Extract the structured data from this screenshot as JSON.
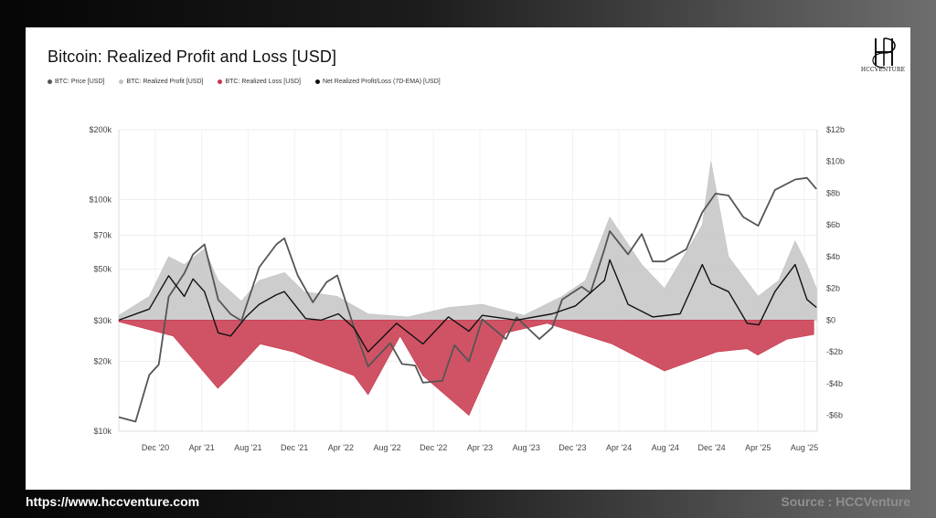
{
  "chart_data": {
    "type": "line",
    "title": "Bitcoin: Realized Profit and Loss [USD]",
    "legend_placement": "top-left",
    "grid": true,
    "x_ticks": [
      "Dec '20",
      "Apr '21",
      "Aug '21",
      "Dec '21",
      "Apr '22",
      "Aug '22",
      "Dec '22",
      "Apr '23",
      "Aug '23",
      "Dec '23",
      "Apr '24",
      "Aug '24",
      "Dec '24",
      "Apr '25",
      "Aug '25"
    ],
    "x_range": [
      "2020-09-01",
      "2025-09-10"
    ],
    "y_left": {
      "scale": "log",
      "range": [
        10000,
        200000
      ],
      "ticks": [
        10000,
        20000,
        30000,
        50000,
        70000,
        100000,
        200000
      ],
      "tick_labels": [
        "$10k",
        "$20k",
        "$30k",
        "$50k",
        "$70k",
        "$100k",
        "$200k"
      ]
    },
    "y_right": {
      "scale": "linear",
      "range": [
        -7000000000,
        12000000000
      ],
      "ticks": [
        -6000000000,
        -4000000000,
        -2000000000,
        0,
        2000000000,
        4000000000,
        6000000000,
        8000000000,
        10000000000,
        12000000000
      ],
      "tick_labels": [
        "-$6b",
        "-$4b",
        "-$2b",
        "$0",
        "$2b",
        "$4b",
        "$6b",
        "$8b",
        "$10b",
        "$12b"
      ]
    },
    "series": [
      {
        "name": "BTC: Price [USD]",
        "color": "#555555",
        "axis": "left",
        "x": [
          "2020-09-01",
          "2020-10-15",
          "2020-11-20",
          "2020-12-15",
          "2021-01-10",
          "2021-02-20",
          "2021-03-15",
          "2021-04-14",
          "2021-05-20",
          "2021-06-22",
          "2021-07-20",
          "2021-09-05",
          "2021-10-20",
          "2021-11-10",
          "2021-12-15",
          "2022-01-24",
          "2022-03-01",
          "2022-03-29",
          "2022-05-12",
          "2022-06-18",
          "2022-08-15",
          "2022-09-15",
          "2022-10-20",
          "2022-11-09",
          "2022-12-30",
          "2023-01-31",
          "2023-03-10",
          "2023-04-14",
          "2023-06-15",
          "2023-07-13",
          "2023-09-11",
          "2023-10-15",
          "2023-11-10",
          "2023-12-31",
          "2024-01-23",
          "2024-02-29",
          "2024-03-14",
          "2024-05-01",
          "2024-06-06",
          "2024-07-05",
          "2024-08-05",
          "2024-10-01",
          "2024-11-12",
          "2024-12-17",
          "2025-01-20",
          "2025-02-28",
          "2025-04-08",
          "2025-05-22",
          "2025-07-14",
          "2025-08-14",
          "2025-09-08"
        ],
        "values": [
          11500,
          11000,
          17500,
          19400,
          38000,
          48000,
          58000,
          64000,
          37000,
          32000,
          30000,
          51000,
          64000,
          68000,
          47000,
          36000,
          44000,
          47000,
          28000,
          19000,
          24000,
          19500,
          19200,
          16200,
          16500,
          23500,
          20000,
          30400,
          25000,
          31000,
          25000,
          28000,
          37000,
          42000,
          39500,
          61000,
          73000,
          58000,
          71000,
          54000,
          54000,
          61000,
          88000,
          106000,
          104000,
          84000,
          77000,
          110000,
          122000,
          124000,
          111000
        ]
      },
      {
        "name": "BTC: Realized Profit [USD]",
        "color": "#c4c4c4",
        "axis": "right",
        "x": [
          "2020-09-01",
          "2020-11-20",
          "2021-01-10",
          "2021-02-20",
          "2021-04-14",
          "2021-05-20",
          "2021-07-20",
          "2021-09-05",
          "2021-11-10",
          "2022-01-01",
          "2022-03-29",
          "2022-06-18",
          "2022-10-01",
          "2023-01-15",
          "2023-04-14",
          "2023-08-01",
          "2023-11-10",
          "2024-01-10",
          "2024-03-14",
          "2024-06-06",
          "2024-08-05",
          "2024-11-12",
          "2024-12-05",
          "2025-01-20",
          "2025-04-08",
          "2025-06-01",
          "2025-07-14",
          "2025-08-14",
          "2025-09-08"
        ],
        "values": [
          300000000,
          1500000000,
          4000000000,
          3500000000,
          4500000000,
          2500000000,
          1200000000,
          2500000000,
          3000000000,
          1800000000,
          1500000000,
          400000000,
          200000000,
          800000000,
          1000000000,
          300000000,
          1500000000,
          2500000000,
          6500000000,
          3500000000,
          2000000000,
          6000000000,
          10000000000,
          4000000000,
          1500000000,
          2500000000,
          5000000000,
          3500000000,
          2000000000
        ]
      },
      {
        "name": "BTC: Realized Loss [USD]",
        "color": "#c8354a",
        "axis": "right",
        "x": [
          "2020-09-01",
          "2021-01-22",
          "2021-05-19",
          "2021-06-22",
          "2021-09-07",
          "2021-12-04",
          "2022-01-22",
          "2022-05-12",
          "2022-06-18",
          "2022-09-10",
          "2022-11-09",
          "2023-03-10",
          "2023-06-15",
          "2023-10-01",
          "2024-03-20",
          "2024-08-05",
          "2024-12-20",
          "2025-03-10",
          "2025-04-07",
          "2025-06-22",
          "2025-09-01"
        ],
        "values": [
          -100000000,
          -1000000000,
          -4300000000,
          -3500000000,
          -1500000000,
          -2000000000,
          -2500000000,
          -3500000000,
          -4700000000,
          -1000000000,
          -3500000000,
          -6000000000,
          -800000000,
          -200000000,
          -1500000000,
          -3200000000,
          -2000000000,
          -1800000000,
          -2200000000,
          -1200000000,
          -900000000
        ]
      },
      {
        "name": "Net Realized Profit/Loss (7D-EMA) [USD]",
        "color": "#111111",
        "axis": "right",
        "x": [
          "2020-09-01",
          "2020-11-20",
          "2021-01-10",
          "2021-02-20",
          "2021-03-15",
          "2021-04-14",
          "2021-05-20",
          "2021-06-22",
          "2021-08-01",
          "2021-09-05",
          "2021-10-20",
          "2021-11-10",
          "2022-01-05",
          "2022-02-15",
          "2022-04-01",
          "2022-05-12",
          "2022-06-18",
          "2022-09-01",
          "2022-11-09",
          "2023-01-15",
          "2023-03-10",
          "2023-04-14",
          "2023-07-13",
          "2023-10-15",
          "2023-12-15",
          "2024-02-29",
          "2024-03-14",
          "2024-05-01",
          "2024-07-05",
          "2024-09-15",
          "2024-11-12",
          "2024-12-05",
          "2025-01-20",
          "2025-03-10",
          "2025-04-10",
          "2025-05-22",
          "2025-07-14",
          "2025-08-14",
          "2025-09-08"
        ],
        "values": [
          0,
          700000000,
          2800000000,
          1500000000,
          2600000000,
          1800000000,
          -800000000,
          -1000000000,
          200000000,
          1000000000,
          1600000000,
          1800000000,
          100000000,
          0,
          400000000,
          -500000000,
          -2000000000,
          -200000000,
          -1500000000,
          200000000,
          -700000000,
          300000000,
          0,
          400000000,
          900000000,
          2500000000,
          3800000000,
          1000000000,
          200000000,
          400000000,
          3500000000,
          2300000000,
          1800000000,
          -200000000,
          -300000000,
          1800000000,
          3500000000,
          1300000000,
          800000000
        ]
      }
    ]
  },
  "footer": {
    "url": "https://www.hccventure.com",
    "source": "Source : HCCVenture"
  },
  "logo": {
    "text": "HCCVENTURE"
  }
}
